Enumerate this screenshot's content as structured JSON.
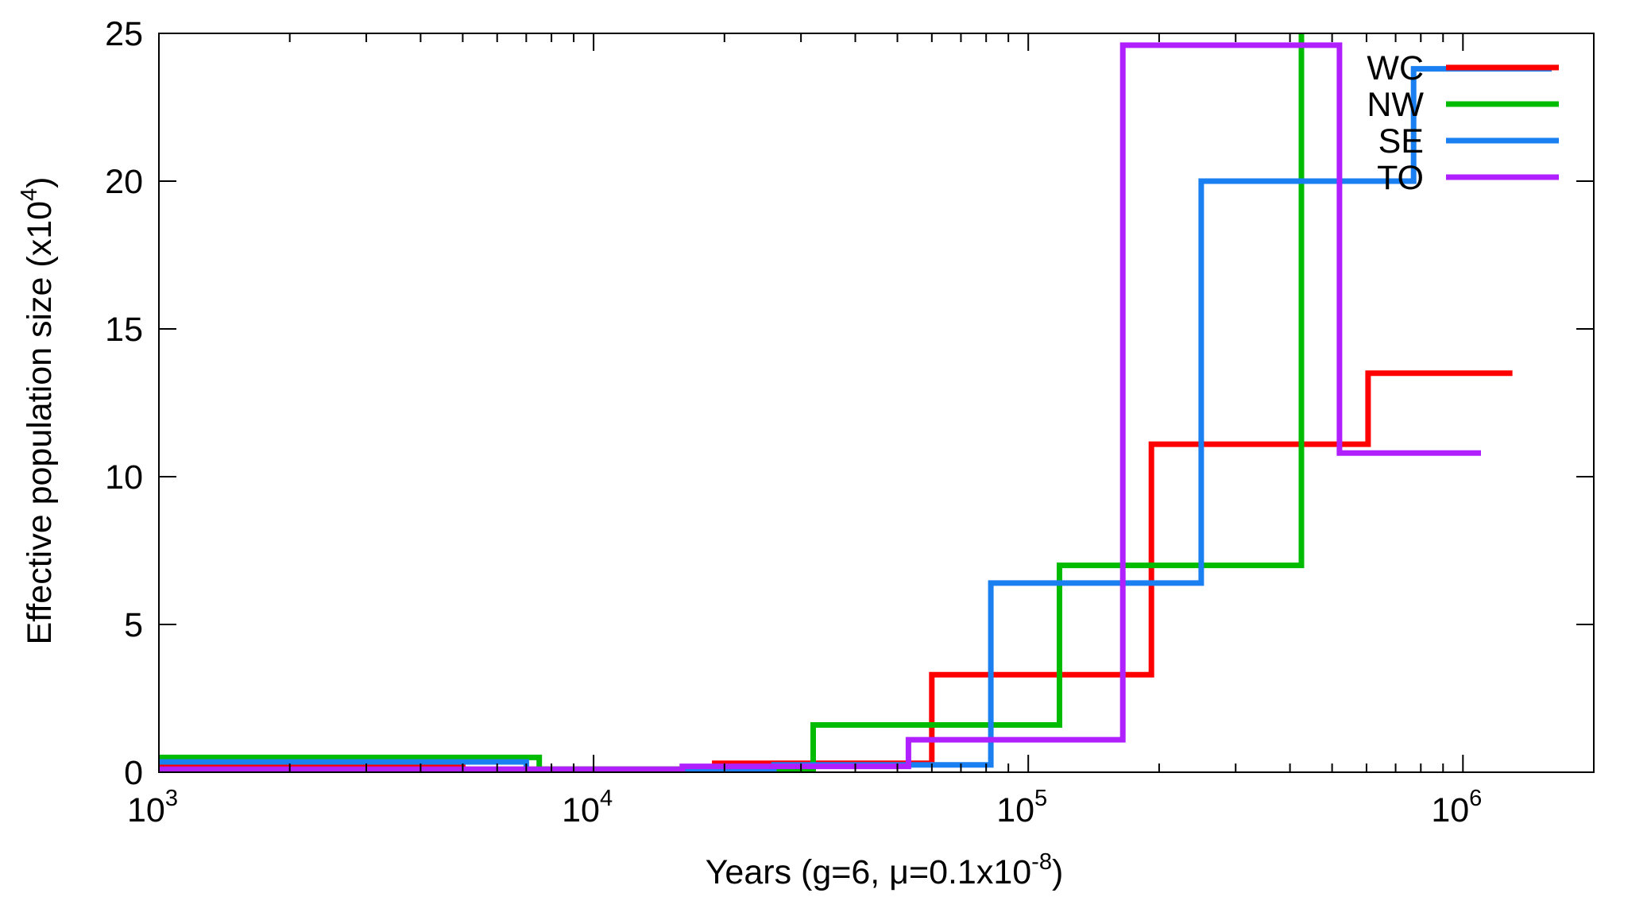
{
  "chart_data": {
    "type": "line",
    "step": true,
    "xscale": "log",
    "xlim": [
      1000,
      2000000
    ],
    "ylim": [
      0,
      25
    ],
    "grid": false,
    "legend_position": "top-right",
    "xlabel": {
      "prefix": "Years (g=6, ",
      "mu": "μ",
      "mid": "=0.1x10",
      "exp": "-8",
      "suffix": ")"
    },
    "ylabel": {
      "base": "Effective population size (x10",
      "exp": "4",
      "suffix": ")"
    },
    "yticks": [
      {
        "value": 0,
        "label": "0"
      },
      {
        "value": 5,
        "label": "5"
      },
      {
        "value": 10,
        "label": "10"
      },
      {
        "value": 15,
        "label": "15"
      },
      {
        "value": 20,
        "label": "20"
      },
      {
        "value": 25,
        "label": "25"
      }
    ],
    "xticks": [
      {
        "value": 1000,
        "base": "10",
        "exp": "3"
      },
      {
        "value": 10000,
        "base": "10",
        "exp": "4"
      },
      {
        "value": 100000,
        "base": "10",
        "exp": "5"
      },
      {
        "value": 1000000,
        "base": "10",
        "exp": "6"
      }
    ],
    "series": [
      {
        "name": "WC",
        "color": "#ff0000",
        "points": [
          [
            1000,
            0.2
          ],
          [
            5000,
            0.2
          ],
          [
            5000,
            0.1
          ],
          [
            19000,
            0.1
          ],
          [
            19000,
            0.3
          ],
          [
            60000,
            0.3
          ],
          [
            60000,
            3.3
          ],
          [
            192000,
            3.3
          ],
          [
            192000,
            11.1
          ],
          [
            605000,
            11.1
          ],
          [
            605000,
            13.5
          ],
          [
            1300000,
            13.5
          ]
        ]
      },
      {
        "name": "NW",
        "color": "#00bb00",
        "points": [
          [
            1000,
            0.5
          ],
          [
            7500,
            0.5
          ],
          [
            7500,
            0.1
          ],
          [
            32000,
            0.1
          ],
          [
            32000,
            1.6
          ],
          [
            118000,
            1.6
          ],
          [
            118000,
            7.0
          ],
          [
            425000,
            7.0
          ],
          [
            425000,
            25.5
          ]
        ]
      },
      {
        "name": "SE",
        "color": "#1a7ff0",
        "points": [
          [
            1000,
            0.35
          ],
          [
            7000,
            0.35
          ],
          [
            7000,
            0.05
          ],
          [
            26000,
            0.05
          ],
          [
            26000,
            0.25
          ],
          [
            82000,
            0.25
          ],
          [
            82000,
            6.4
          ],
          [
            250000,
            6.4
          ],
          [
            250000,
            20.0
          ],
          [
            770000,
            20.0
          ],
          [
            770000,
            23.8
          ],
          [
            1600000,
            23.8
          ]
        ]
      },
      {
        "name": "TO",
        "color": "#b020ff",
        "points": [
          [
            1000,
            0.1
          ],
          [
            16000,
            0.1
          ],
          [
            16000,
            0.2
          ],
          [
            53000,
            0.2
          ],
          [
            53000,
            1.1
          ],
          [
            165000,
            1.1
          ],
          [
            165000,
            24.6
          ],
          [
            520000,
            24.6
          ],
          [
            520000,
            10.8
          ],
          [
            1100000,
            10.8
          ]
        ]
      }
    ]
  }
}
